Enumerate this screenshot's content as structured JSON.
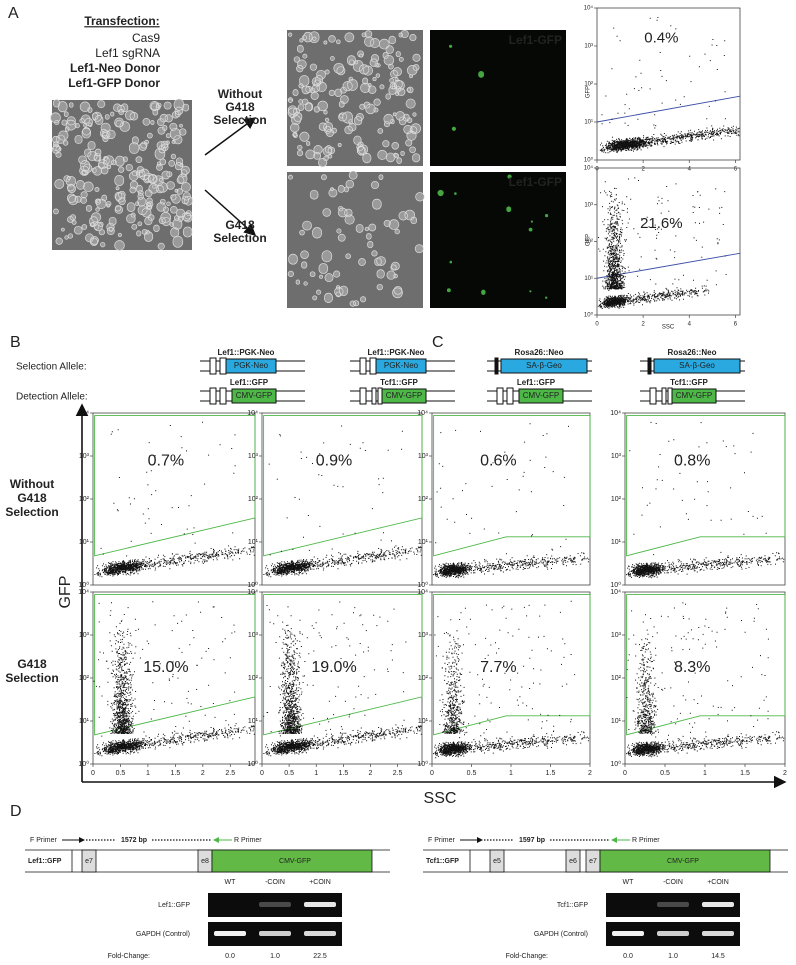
{
  "panel_labels": [
    "A",
    "B",
    "C",
    "D"
  ],
  "panel_a": {
    "transfection_title": "Transfection:",
    "transfection_items": [
      "Cas9",
      "Lef1 sgRNA",
      "Lef1-Neo Donor",
      "Lef1-GFP Donor"
    ],
    "without_label": [
      "Without",
      "G418",
      "Selection"
    ],
    "with_label": [
      "G418",
      "Selection"
    ],
    "gfp_image_labels": [
      "Lef1-GFP",
      "Lef1-GFP"
    ],
    "plots": [
      "0.4%",
      "21.6%"
    ],
    "y_axis": "GFP",
    "x_axis": "SSC",
    "yticks": [
      "10⁰",
      "10¹",
      "10²",
      "10³",
      "10⁴"
    ],
    "xticks": [
      "0",
      "2",
      "4",
      "6"
    ]
  },
  "panel_b": {
    "selection_label": "Selection Allele:",
    "detection_label": "Detection Allele:",
    "columns": [
      {
        "selection_allele": "Lef1::PGK-Neo",
        "selection_cassette": "PGK-Neo",
        "detection_allele": "Lef1::GFP",
        "detection_cassette": "CMV-GFP",
        "percents": [
          "0.7%",
          "15.0%"
        ]
      },
      {
        "selection_allele": "Lef1::PGK-Neo",
        "selection_cassette": "PGK-Neo",
        "detection_allele": "Tcf1::GFP",
        "detection_cassette": "CMV-GFP",
        "percents": [
          "0.9%",
          "19.0%"
        ]
      }
    ],
    "xticks": [
      "0",
      "0.5",
      "1",
      "1.5",
      "2",
      "2.5"
    ]
  },
  "panel_c": {
    "columns": [
      {
        "selection_allele": "Rosa26::Neo",
        "selection_cassette": "SA-β-Geo",
        "detection_allele": "Lef1::GFP",
        "detection_cassette": "CMV-GFP",
        "percents": [
          "0.6%",
          "7.7%"
        ]
      },
      {
        "selection_allele": "Rosa26::Neo",
        "selection_cassette": "SA-β-Geo",
        "detection_allele": "Tcf1::GFP",
        "detection_cassette": "CMV-GFP",
        "percents": [
          "0.8%",
          "8.3%"
        ]
      }
    ],
    "xticks": [
      "0",
      "0.5",
      "1",
      "1.5",
      "2"
    ]
  },
  "flow_axes": {
    "y_axis": "GFP",
    "x_axis": "SSC",
    "yticks": [
      "10⁰",
      "10¹",
      "10²",
      "10³",
      "10⁴"
    ],
    "row_without": [
      "Without",
      "G418",
      "Selection"
    ],
    "row_with": [
      "G418",
      "Selection"
    ]
  },
  "panel_d": {
    "assays": [
      {
        "f_primer": "F Primer",
        "amplicon": "1572 bp",
        "r_primer": "R Primer",
        "allele": "Lef1::GFP",
        "exons": [
          "e7",
          "e8"
        ],
        "cassette": "CMV-GFP",
        "lanes": [
          "WT",
          "-COIN",
          "+COIN"
        ],
        "gel_rows": [
          "Lef1::GFP",
          "GAPDH (Control)"
        ],
        "fold_label": "Fold-Change:",
        "fold_values": [
          "0.0",
          "1.0",
          "22.5"
        ]
      },
      {
        "f_primer": "F Primer",
        "amplicon": "1597 bp",
        "r_primer": "R Primer",
        "allele": "Tcf1::GFP",
        "exons": [
          "e5",
          "e6",
          "e7"
        ],
        "cassette": "CMV-GFP",
        "lanes": [
          "WT",
          "-COIN",
          "+COIN"
        ],
        "gel_rows": [
          "Tcf1::GFP",
          "GAPDH (Control)"
        ],
        "fold_label": "Fold-Change:",
        "fold_values": [
          "0.0",
          "1.0",
          "14.5"
        ]
      }
    ]
  }
}
